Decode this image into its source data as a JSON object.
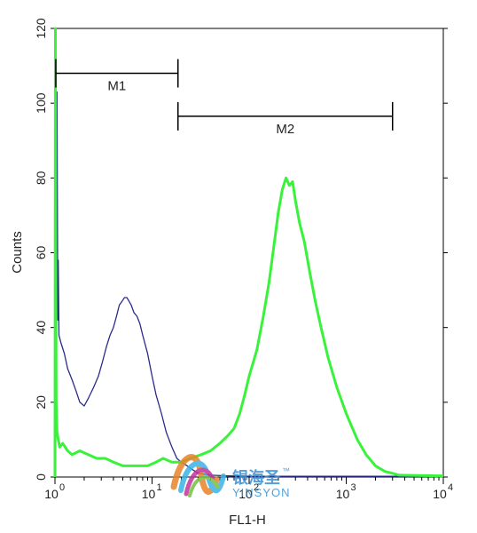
{
  "chart_data": {
    "type": "line",
    "title": "",
    "xlabel": "FL1-H",
    "ylabel": "Counts",
    "xscale": "log",
    "xlim": [
      1,
      10000
    ],
    "ylim": [
      0,
      120
    ],
    "yticks": [
      "0",
      "20",
      "40",
      "60",
      "80",
      "100",
      "120"
    ],
    "xtick_base": "10",
    "xticks": [
      {
        "value": 1,
        "exp": "0"
      },
      {
        "value": 10,
        "exp": "1"
      },
      {
        "value": 100,
        "exp": "2"
      },
      {
        "value": 1000,
        "exp": "3"
      },
      {
        "value": 10000,
        "exp": "4"
      }
    ],
    "grid": false,
    "markers": [
      {
        "label": "M1",
        "from": 1.02,
        "to": 18.5,
        "y": 108
      },
      {
        "label": "M2",
        "from": 18.5,
        "to": 3000,
        "y": 96.5
      }
    ],
    "series": [
      {
        "color": "#2a2a8c",
        "x": [
          1.0,
          1.02,
          1.04,
          1.05,
          1.07,
          1.08,
          1.1,
          1.15,
          1.25,
          1.35,
          1.5,
          1.65,
          1.8,
          2.0,
          2.2,
          2.5,
          2.8,
          3.1,
          3.4,
          3.7,
          4.0,
          4.3,
          4.6,
          4.9,
          5.2,
          5.5,
          5.8,
          6.1,
          6.5,
          7.0,
          7.5,
          8.0,
          9.0,
          10.0,
          11.0,
          12.5,
          14.0,
          16.0,
          18.0,
          20.0,
          23.0,
          26.0,
          30.0,
          40.0,
          60.0,
          100.0,
          300.0,
          1000.0,
          3000.0,
          10000.0
        ],
        "y": [
          0,
          100,
          60,
          103,
          42,
          58,
          38,
          36,
          33,
          29,
          26,
          23,
          20,
          19,
          21,
          24,
          27,
          31,
          35,
          38,
          40,
          43,
          46,
          47,
          48,
          48,
          47,
          46,
          44,
          43,
          41,
          38,
          33,
          27,
          22,
          17,
          12,
          8,
          5,
          4,
          3,
          2,
          1,
          0.5,
          0.3,
          0.2,
          0.2,
          0.2,
          0.2,
          0.1
        ]
      },
      {
        "color": "#39f23a",
        "x": [
          1.0,
          1.01,
          1.02,
          1.03,
          1.05,
          1.08,
          1.12,
          1.2,
          1.35,
          1.5,
          1.8,
          2.2,
          2.7,
          3.3,
          4.0,
          5.0,
          6.0,
          7.5,
          9.0,
          11.0,
          13.0,
          16.0,
          20.0,
          25.0,
          32.0,
          40.0,
          50.0,
          60.0,
          70.0,
          80.0,
          90.0,
          100.0,
          120.0,
          140.0,
          160.0,
          180.0,
          200.0,
          220.0,
          240.0,
          260.0,
          280.0,
          300.0,
          330.0,
          370.0,
          420.0,
          480.0,
          550.0,
          650.0,
          800.0,
          1000.0,
          1300.0,
          1600.0,
          2000.0,
          2500.0,
          3000.0,
          3500.0,
          10000.0
        ],
        "y": [
          0,
          120,
          60,
          20,
          12,
          10,
          8,
          9,
          7,
          6,
          7,
          6,
          5,
          5,
          4,
          3,
          3,
          3,
          3,
          4,
          5,
          4,
          4,
          5,
          6,
          7,
          9,
          11,
          13,
          17,
          22,
          27,
          34,
          43,
          52,
          62,
          71,
          77,
          80,
          78,
          79,
          74,
          68,
          63,
          55,
          47,
          40,
          32,
          24,
          17,
          10,
          6,
          3,
          1.5,
          1,
          0.5,
          0.3
        ]
      }
    ]
  },
  "watermark": {
    "name_cn": "银海圣",
    "trademark": "™",
    "name_en": "YINSYON"
  }
}
